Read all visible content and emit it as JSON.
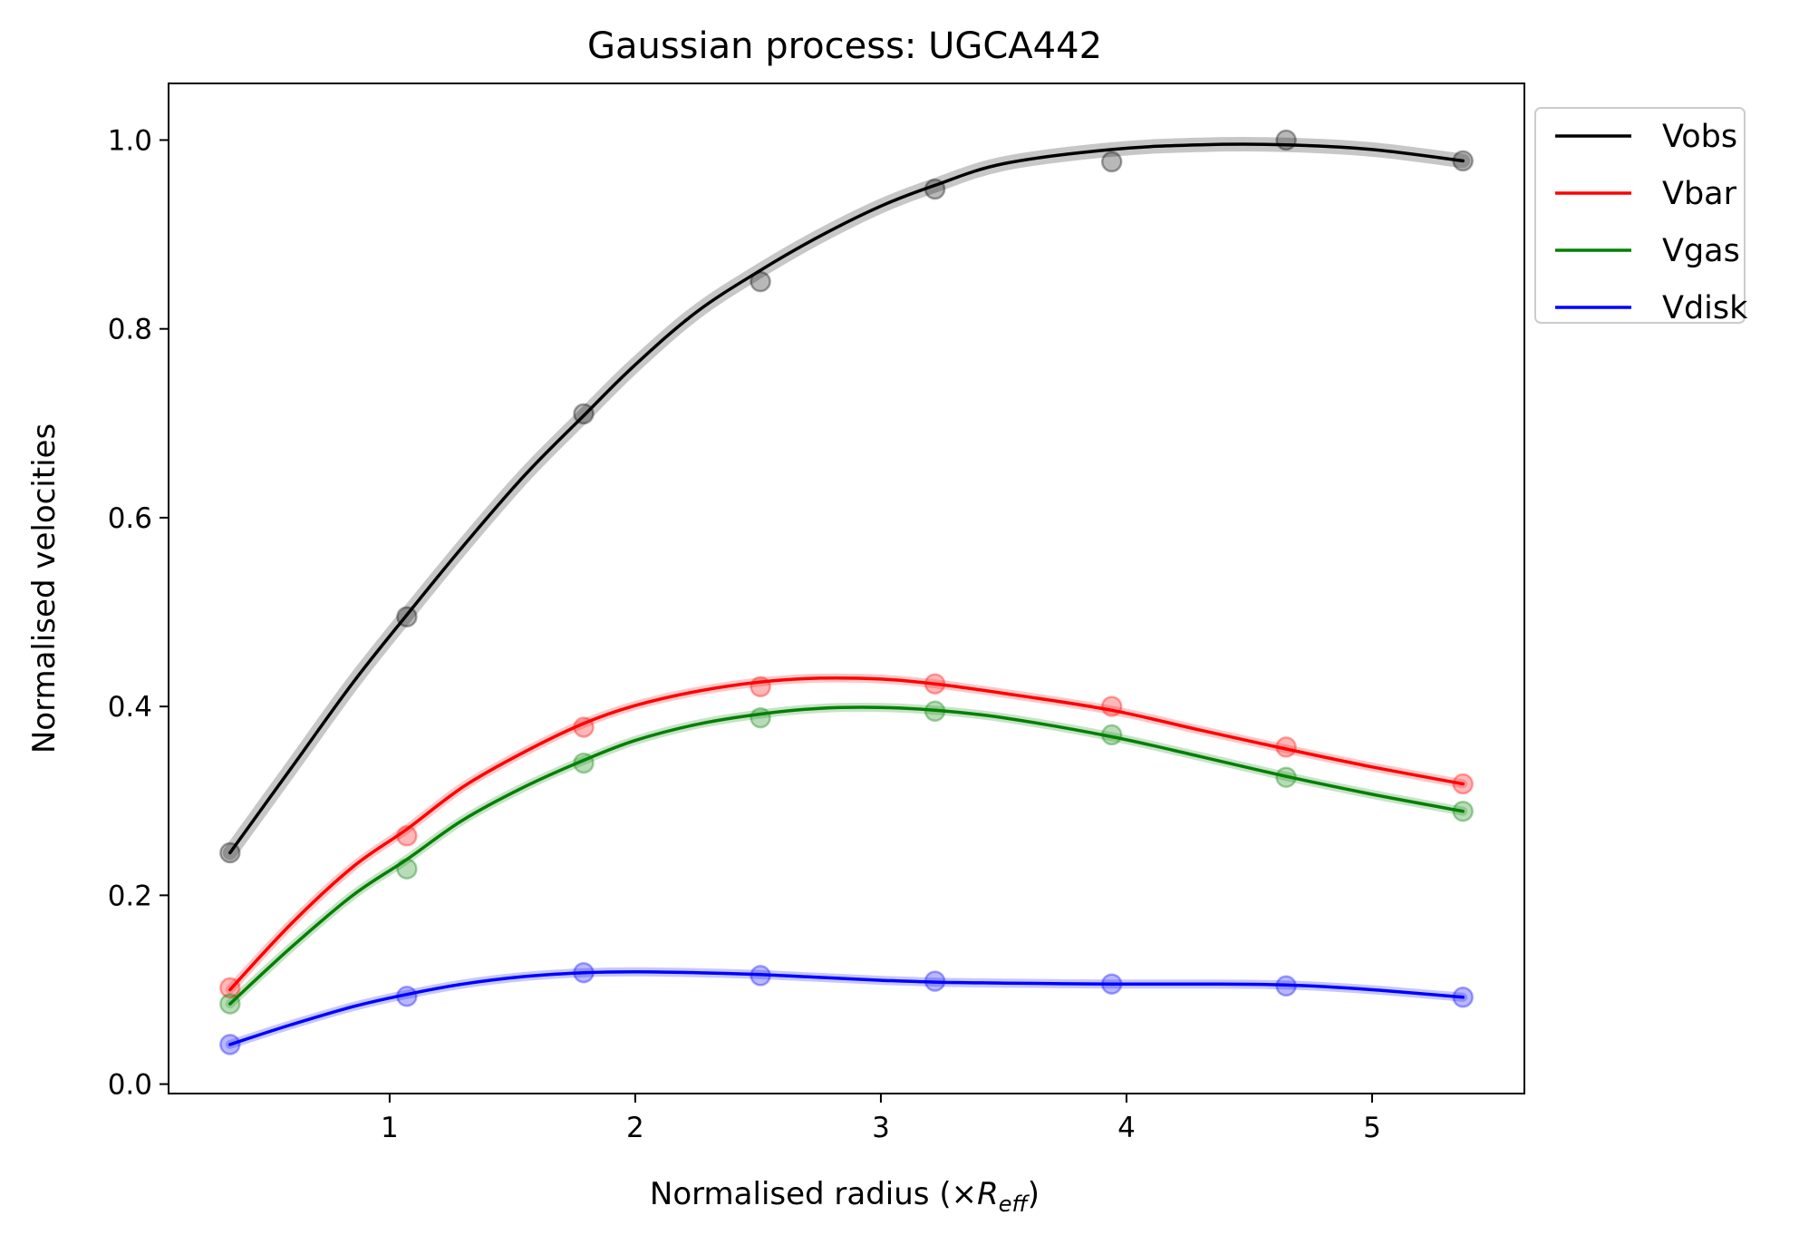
{
  "chart_data": {
    "type": "line",
    "title": "Gaussian process: UGCA442",
    "xlabel": "Normalised radius (×R_eff)",
    "xlabel_main": "Normalised radius (×",
    "xlabel_sym": "R",
    "xlabel_sub": "eff",
    "xlabel_close": ")",
    "ylabel": "Normalised velocities",
    "xlim": [
      0.1,
      5.62
    ],
    "ylim": [
      -0.01,
      1.06
    ],
    "xticks": [
      1,
      2,
      3,
      4,
      5
    ],
    "yticks": [
      0.0,
      0.2,
      0.4,
      0.6,
      0.8,
      1.0
    ],
    "xtick_labels": [
      "1",
      "2",
      "3",
      "4",
      "5"
    ],
    "ytick_labels": [
      "0.0",
      "0.2",
      "0.4",
      "0.6",
      "0.8",
      "1.0"
    ],
    "legend_position": "outside-top-right",
    "grid": false,
    "x": [
      0.35,
      1.07,
      1.79,
      2.51,
      3.22,
      3.94,
      4.65,
      5.37
    ],
    "series": [
      {
        "name": "Vobs",
        "color": "#000000",
        "points": [
          0.245,
          0.495,
          0.71,
          0.85,
          0.948,
          0.977,
          1.0,
          0.978
        ],
        "curve": [
          [
            0.35,
            0.245
          ],
          [
            0.6,
            0.335
          ],
          [
            0.85,
            0.425
          ],
          [
            1.07,
            0.497
          ],
          [
            1.3,
            0.57
          ],
          [
            1.55,
            0.645
          ],
          [
            1.79,
            0.708
          ],
          [
            2.0,
            0.762
          ],
          [
            2.25,
            0.818
          ],
          [
            2.51,
            0.862
          ],
          [
            2.75,
            0.898
          ],
          [
            3.0,
            0.93
          ],
          [
            3.22,
            0.952
          ],
          [
            3.5,
            0.975
          ],
          [
            3.94,
            0.99
          ],
          [
            4.3,
            0.995
          ],
          [
            4.65,
            0.995
          ],
          [
            5.0,
            0.99
          ],
          [
            5.37,
            0.978
          ]
        ]
      },
      {
        "name": "Vbar",
        "color": "#ff0000",
        "points": [
          0.102,
          0.263,
          0.378,
          0.421,
          0.424,
          0.4,
          0.357,
          0.318
        ],
        "curve": [
          [
            0.35,
            0.1
          ],
          [
            0.6,
            0.17
          ],
          [
            0.85,
            0.23
          ],
          [
            1.07,
            0.27
          ],
          [
            1.3,
            0.315
          ],
          [
            1.55,
            0.352
          ],
          [
            1.79,
            0.382
          ],
          [
            2.0,
            0.401
          ],
          [
            2.25,
            0.416
          ],
          [
            2.51,
            0.426
          ],
          [
            2.75,
            0.43
          ],
          [
            3.0,
            0.429
          ],
          [
            3.22,
            0.424
          ],
          [
            3.5,
            0.414
          ],
          [
            3.94,
            0.396
          ],
          [
            4.3,
            0.375
          ],
          [
            4.65,
            0.355
          ],
          [
            5.0,
            0.336
          ],
          [
            5.37,
            0.318
          ]
        ]
      },
      {
        "name": "Vgas",
        "color": "#008000",
        "points": [
          0.085,
          0.228,
          0.34,
          0.388,
          0.395,
          0.37,
          0.325,
          0.289
        ],
        "curve": [
          [
            0.35,
            0.085
          ],
          [
            0.6,
            0.145
          ],
          [
            0.85,
            0.2
          ],
          [
            1.07,
            0.238
          ],
          [
            1.3,
            0.28
          ],
          [
            1.55,
            0.315
          ],
          [
            1.79,
            0.343
          ],
          [
            2.0,
            0.364
          ],
          [
            2.25,
            0.381
          ],
          [
            2.51,
            0.392
          ],
          [
            2.75,
            0.398
          ],
          [
            3.0,
            0.399
          ],
          [
            3.22,
            0.396
          ],
          [
            3.5,
            0.388
          ],
          [
            3.94,
            0.368
          ],
          [
            4.3,
            0.347
          ],
          [
            4.65,
            0.326
          ],
          [
            5.0,
            0.307
          ],
          [
            5.37,
            0.289
          ]
        ]
      },
      {
        "name": "Vdisk",
        "color": "#0000ff",
        "points": [
          0.042,
          0.093,
          0.118,
          0.115,
          0.109,
          0.106,
          0.104,
          0.092
        ],
        "curve": [
          [
            0.35,
            0.042
          ],
          [
            0.6,
            0.063
          ],
          [
            0.85,
            0.082
          ],
          [
            1.07,
            0.095
          ],
          [
            1.3,
            0.106
          ],
          [
            1.55,
            0.114
          ],
          [
            1.79,
            0.118
          ],
          [
            2.0,
            0.119
          ],
          [
            2.25,
            0.118
          ],
          [
            2.51,
            0.116
          ],
          [
            2.75,
            0.113
          ],
          [
            3.0,
            0.11
          ],
          [
            3.22,
            0.108
          ],
          [
            3.5,
            0.107
          ],
          [
            3.94,
            0.106
          ],
          [
            4.3,
            0.106
          ],
          [
            4.65,
            0.105
          ],
          [
            5.0,
            0.1
          ],
          [
            5.37,
            0.092
          ]
        ]
      }
    ]
  }
}
